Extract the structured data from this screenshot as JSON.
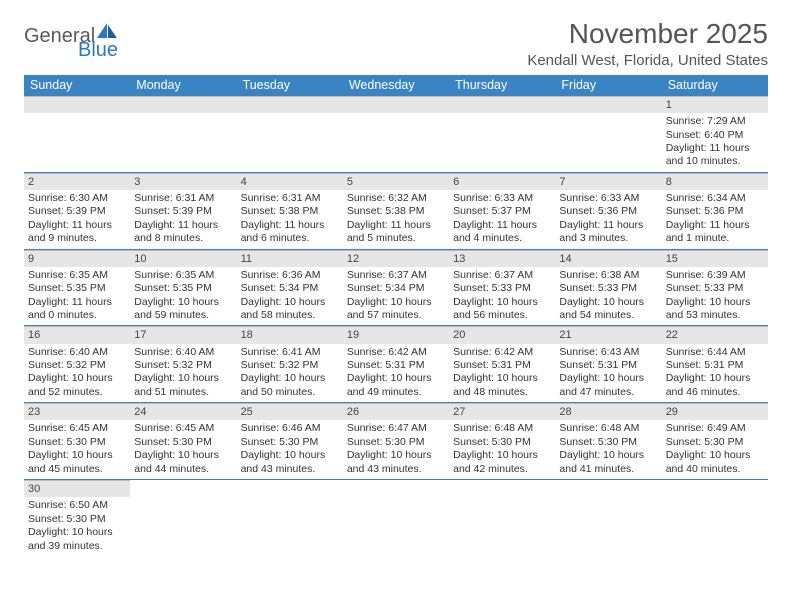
{
  "brand": {
    "name1": "General",
    "name2": "Blue"
  },
  "title": "November 2025",
  "location": "Kendall West, Florida, United States",
  "colors": {
    "header_bg": "#3b84c4",
    "header_fg": "#ffffff",
    "daynum_bg": "#e6e6e6",
    "rule": "#3b84c4",
    "text": "#333333",
    "title": "#555555"
  },
  "day_headers": [
    "Sunday",
    "Monday",
    "Tuesday",
    "Wednesday",
    "Thursday",
    "Friday",
    "Saturday"
  ],
  "weeks": [
    [
      null,
      null,
      null,
      null,
      null,
      null,
      {
        "n": "1",
        "sr": "Sunrise: 7:29 AM",
        "ss": "Sunset: 6:40 PM",
        "dl": "Daylight: 11 hours and 10 minutes."
      }
    ],
    [
      {
        "n": "2",
        "sr": "Sunrise: 6:30 AM",
        "ss": "Sunset: 5:39 PM",
        "dl": "Daylight: 11 hours and 9 minutes."
      },
      {
        "n": "3",
        "sr": "Sunrise: 6:31 AM",
        "ss": "Sunset: 5:39 PM",
        "dl": "Daylight: 11 hours and 8 minutes."
      },
      {
        "n": "4",
        "sr": "Sunrise: 6:31 AM",
        "ss": "Sunset: 5:38 PM",
        "dl": "Daylight: 11 hours and 6 minutes."
      },
      {
        "n": "5",
        "sr": "Sunrise: 6:32 AM",
        "ss": "Sunset: 5:38 PM",
        "dl": "Daylight: 11 hours and 5 minutes."
      },
      {
        "n": "6",
        "sr": "Sunrise: 6:33 AM",
        "ss": "Sunset: 5:37 PM",
        "dl": "Daylight: 11 hours and 4 minutes."
      },
      {
        "n": "7",
        "sr": "Sunrise: 6:33 AM",
        "ss": "Sunset: 5:36 PM",
        "dl": "Daylight: 11 hours and 3 minutes."
      },
      {
        "n": "8",
        "sr": "Sunrise: 6:34 AM",
        "ss": "Sunset: 5:36 PM",
        "dl": "Daylight: 11 hours and 1 minute."
      }
    ],
    [
      {
        "n": "9",
        "sr": "Sunrise: 6:35 AM",
        "ss": "Sunset: 5:35 PM",
        "dl": "Daylight: 11 hours and 0 minutes."
      },
      {
        "n": "10",
        "sr": "Sunrise: 6:35 AM",
        "ss": "Sunset: 5:35 PM",
        "dl": "Daylight: 10 hours and 59 minutes."
      },
      {
        "n": "11",
        "sr": "Sunrise: 6:36 AM",
        "ss": "Sunset: 5:34 PM",
        "dl": "Daylight: 10 hours and 58 minutes."
      },
      {
        "n": "12",
        "sr": "Sunrise: 6:37 AM",
        "ss": "Sunset: 5:34 PM",
        "dl": "Daylight: 10 hours and 57 minutes."
      },
      {
        "n": "13",
        "sr": "Sunrise: 6:37 AM",
        "ss": "Sunset: 5:33 PM",
        "dl": "Daylight: 10 hours and 56 minutes."
      },
      {
        "n": "14",
        "sr": "Sunrise: 6:38 AM",
        "ss": "Sunset: 5:33 PM",
        "dl": "Daylight: 10 hours and 54 minutes."
      },
      {
        "n": "15",
        "sr": "Sunrise: 6:39 AM",
        "ss": "Sunset: 5:33 PM",
        "dl": "Daylight: 10 hours and 53 minutes."
      }
    ],
    [
      {
        "n": "16",
        "sr": "Sunrise: 6:40 AM",
        "ss": "Sunset: 5:32 PM",
        "dl": "Daylight: 10 hours and 52 minutes."
      },
      {
        "n": "17",
        "sr": "Sunrise: 6:40 AM",
        "ss": "Sunset: 5:32 PM",
        "dl": "Daylight: 10 hours and 51 minutes."
      },
      {
        "n": "18",
        "sr": "Sunrise: 6:41 AM",
        "ss": "Sunset: 5:32 PM",
        "dl": "Daylight: 10 hours and 50 minutes."
      },
      {
        "n": "19",
        "sr": "Sunrise: 6:42 AM",
        "ss": "Sunset: 5:31 PM",
        "dl": "Daylight: 10 hours and 49 minutes."
      },
      {
        "n": "20",
        "sr": "Sunrise: 6:42 AM",
        "ss": "Sunset: 5:31 PM",
        "dl": "Daylight: 10 hours and 48 minutes."
      },
      {
        "n": "21",
        "sr": "Sunrise: 6:43 AM",
        "ss": "Sunset: 5:31 PM",
        "dl": "Daylight: 10 hours and 47 minutes."
      },
      {
        "n": "22",
        "sr": "Sunrise: 6:44 AM",
        "ss": "Sunset: 5:31 PM",
        "dl": "Daylight: 10 hours and 46 minutes."
      }
    ],
    [
      {
        "n": "23",
        "sr": "Sunrise: 6:45 AM",
        "ss": "Sunset: 5:30 PM",
        "dl": "Daylight: 10 hours and 45 minutes."
      },
      {
        "n": "24",
        "sr": "Sunrise: 6:45 AM",
        "ss": "Sunset: 5:30 PM",
        "dl": "Daylight: 10 hours and 44 minutes."
      },
      {
        "n": "25",
        "sr": "Sunrise: 6:46 AM",
        "ss": "Sunset: 5:30 PM",
        "dl": "Daylight: 10 hours and 43 minutes."
      },
      {
        "n": "26",
        "sr": "Sunrise: 6:47 AM",
        "ss": "Sunset: 5:30 PM",
        "dl": "Daylight: 10 hours and 43 minutes."
      },
      {
        "n": "27",
        "sr": "Sunrise: 6:48 AM",
        "ss": "Sunset: 5:30 PM",
        "dl": "Daylight: 10 hours and 42 minutes."
      },
      {
        "n": "28",
        "sr": "Sunrise: 6:48 AM",
        "ss": "Sunset: 5:30 PM",
        "dl": "Daylight: 10 hours and 41 minutes."
      },
      {
        "n": "29",
        "sr": "Sunrise: 6:49 AM",
        "ss": "Sunset: 5:30 PM",
        "dl": "Daylight: 10 hours and 40 minutes."
      }
    ],
    [
      {
        "n": "30",
        "sr": "Sunrise: 6:50 AM",
        "ss": "Sunset: 5:30 PM",
        "dl": "Daylight: 10 hours and 39 minutes."
      },
      null,
      null,
      null,
      null,
      null,
      null
    ]
  ]
}
